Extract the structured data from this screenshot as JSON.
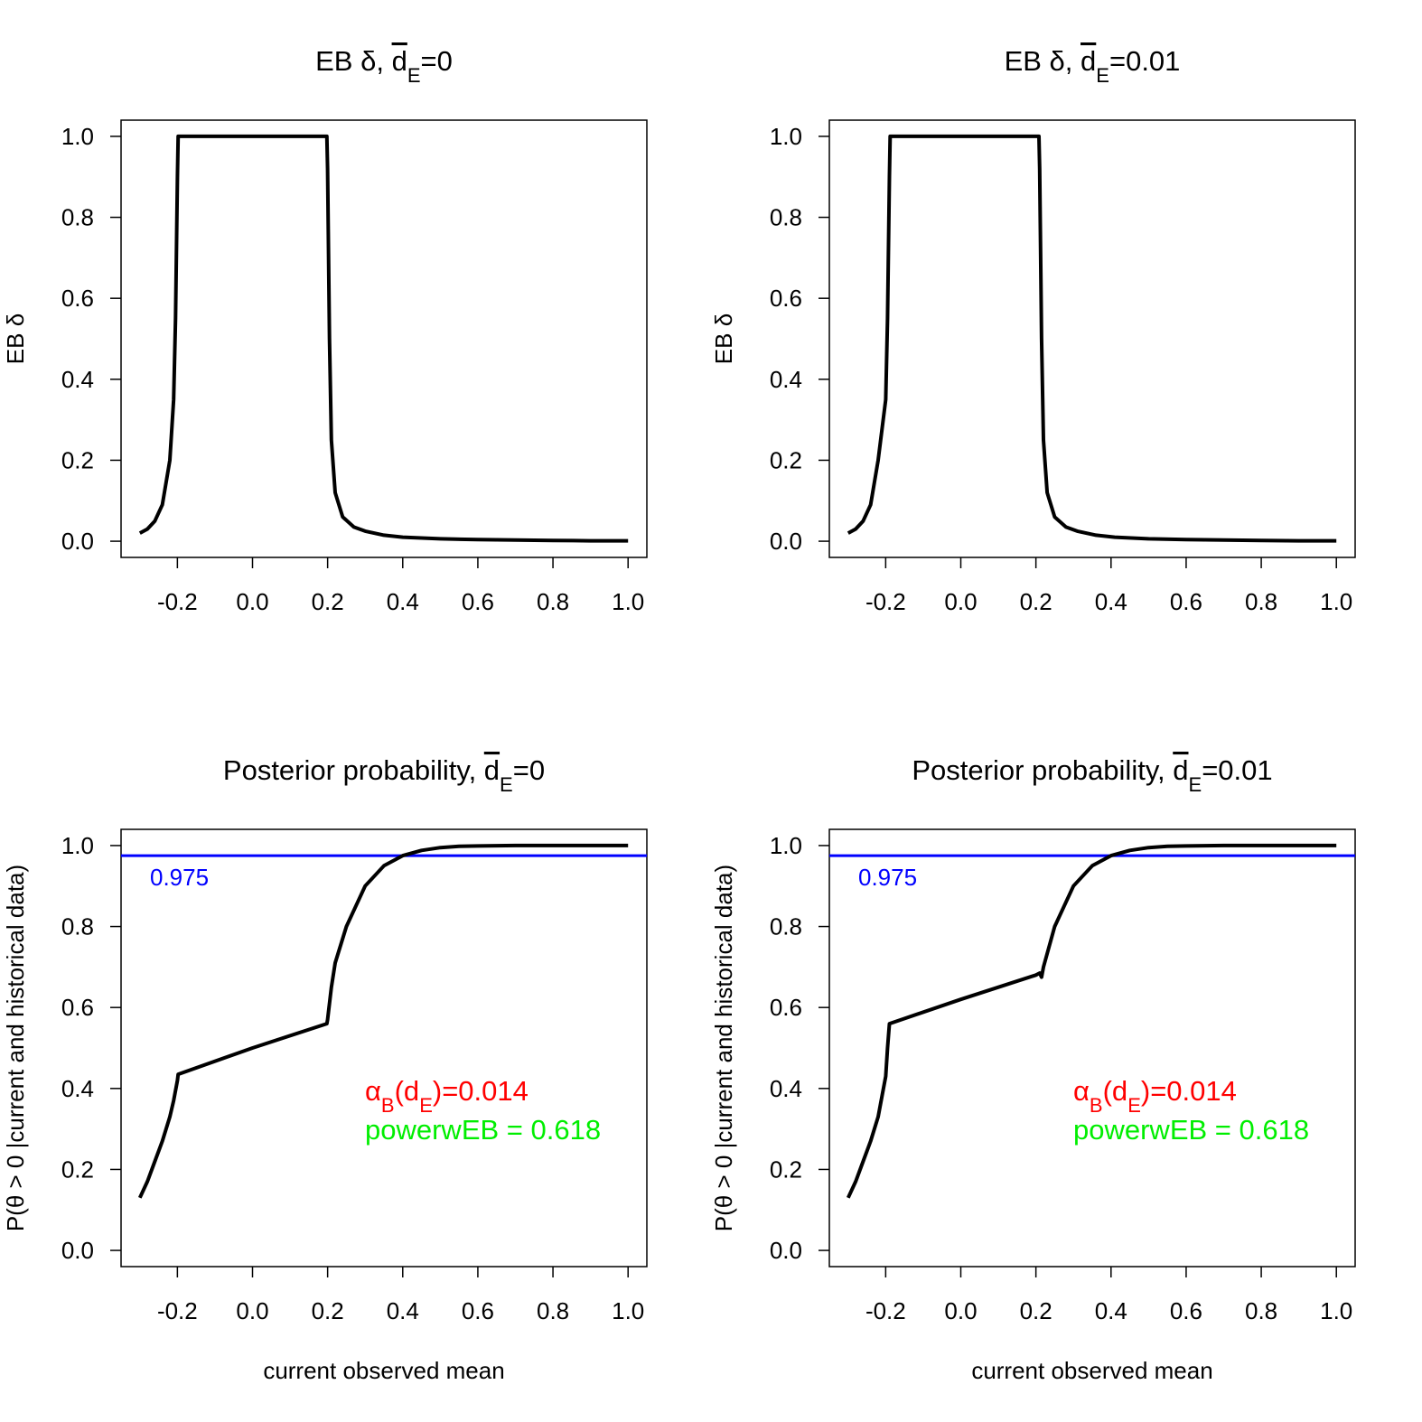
{
  "chart_data": [
    {
      "type": "line",
      "title": {
        "main": "EB δ, ",
        "d": "d",
        "sub": "E",
        "suffix": "=0"
      },
      "xlabel": "",
      "ylabel": "EB δ",
      "xlim": [
        -0.35,
        1.05
      ],
      "ylim": [
        -0.04,
        1.04
      ],
      "xticks": [
        "-0.2",
        "0.0",
        "0.2",
        "0.4",
        "0.6",
        "0.8",
        "1.0"
      ],
      "yticks": [
        "0.0",
        "0.2",
        "0.4",
        "0.6",
        "0.8",
        "1.0"
      ],
      "series": [
        {
          "name": "EB delta",
          "x": [
            -0.3,
            -0.28,
            -0.26,
            -0.24,
            -0.22,
            -0.21,
            -0.205,
            -0.2,
            -0.198,
            0.198,
            0.2,
            0.205,
            0.21,
            0.22,
            0.24,
            0.27,
            0.3,
            0.35,
            0.4,
            0.5,
            0.6,
            0.7,
            0.8,
            0.9,
            1.0
          ],
          "y": [
            0.02,
            0.03,
            0.05,
            0.09,
            0.2,
            0.35,
            0.55,
            0.9,
            1.0,
            1.0,
            0.92,
            0.5,
            0.25,
            0.12,
            0.06,
            0.035,
            0.025,
            0.015,
            0.01,
            0.006,
            0.004,
            0.003,
            0.002,
            0.001,
            0.001
          ]
        }
      ]
    },
    {
      "type": "line",
      "title": {
        "main": "EB δ, ",
        "d": "d",
        "sub": "E",
        "suffix": "=0.01"
      },
      "xlabel": "",
      "ylabel": "EB δ",
      "xlim": [
        -0.35,
        1.05
      ],
      "ylim": [
        -0.04,
        1.04
      ],
      "xticks": [
        "-0.2",
        "0.0",
        "0.2",
        "0.4",
        "0.6",
        "0.8",
        "1.0"
      ],
      "yticks": [
        "0.0",
        "0.2",
        "0.4",
        "0.6",
        "0.8",
        "1.0"
      ],
      "series": [
        {
          "name": "EB delta",
          "x": [
            -0.3,
            -0.28,
            -0.26,
            -0.24,
            -0.22,
            -0.2,
            -0.195,
            -0.19,
            -0.188,
            0.208,
            0.21,
            0.215,
            0.22,
            0.23,
            0.25,
            0.28,
            0.31,
            0.36,
            0.41,
            0.5,
            0.6,
            0.7,
            0.8,
            0.9,
            1.0
          ],
          "y": [
            0.02,
            0.03,
            0.05,
            0.09,
            0.2,
            0.35,
            0.55,
            0.9,
            1.0,
            1.0,
            0.92,
            0.5,
            0.25,
            0.12,
            0.06,
            0.035,
            0.025,
            0.015,
            0.01,
            0.006,
            0.004,
            0.003,
            0.002,
            0.001,
            0.001
          ]
        }
      ]
    },
    {
      "type": "line",
      "title": {
        "main": "Posterior probability, ",
        "d": "d",
        "sub": "E",
        "suffix": "=0"
      },
      "xlabel": "current observed mean",
      "ylabel": "P(θ > 0 |current and historical data)",
      "xlim": [
        -0.35,
        1.05
      ],
      "ylim": [
        -0.04,
        1.04
      ],
      "xticks": [
        "-0.2",
        "0.0",
        "0.2",
        "0.4",
        "0.6",
        "0.8",
        "1.0"
      ],
      "yticks": [
        "0.0",
        "0.2",
        "0.4",
        "0.6",
        "0.8",
        "1.0"
      ],
      "reference_line": {
        "y": 0.975,
        "label": "0.975",
        "color": "#0000ff"
      },
      "annotations": [
        {
          "alpha": "α",
          "sub1": "B",
          "mid": "(d",
          "sub2": "E",
          "value": ")=0.014",
          "color": "#ff0000"
        },
        {
          "text": "powerwEB =  0.618",
          "color": "#00ee00"
        }
      ],
      "series": [
        {
          "name": "posterior probability",
          "x": [
            -0.3,
            -0.28,
            -0.26,
            -0.24,
            -0.22,
            -0.21,
            -0.2,
            -0.198,
            0.0,
            0.198,
            0.2,
            0.21,
            0.22,
            0.25,
            0.3,
            0.35,
            0.4,
            0.45,
            0.5,
            0.55,
            0.6,
            0.7,
            0.8,
            0.9,
            1.0
          ],
          "y": [
            0.13,
            0.17,
            0.22,
            0.27,
            0.33,
            0.37,
            0.42,
            0.435,
            0.5,
            0.56,
            0.57,
            0.65,
            0.71,
            0.8,
            0.9,
            0.95,
            0.975,
            0.988,
            0.995,
            0.998,
            0.999,
            1.0,
            1.0,
            1.0,
            1.0
          ]
        }
      ]
    },
    {
      "type": "line",
      "title": {
        "main": "Posterior probability, ",
        "d": "d",
        "sub": "E",
        "suffix": "=0.01"
      },
      "xlabel": "current observed mean",
      "ylabel": "P(θ > 0 |current and historical data)",
      "xlim": [
        -0.35,
        1.05
      ],
      "ylim": [
        -0.04,
        1.04
      ],
      "xticks": [
        "-0.2",
        "0.0",
        "0.2",
        "0.4",
        "0.6",
        "0.8",
        "1.0"
      ],
      "yticks": [
        "0.0",
        "0.2",
        "0.4",
        "0.6",
        "0.8",
        "1.0"
      ],
      "reference_line": {
        "y": 0.975,
        "label": "0.975",
        "color": "#0000ff"
      },
      "annotations": [
        {
          "alpha": "α",
          "sub1": "B",
          "mid": "(d",
          "sub2": "E",
          "value": ")=0.014",
          "color": "#ff0000"
        },
        {
          "text": "powerwEB =  0.618",
          "color": "#00ee00"
        }
      ],
      "series": [
        {
          "name": "posterior probability",
          "x": [
            -0.3,
            -0.28,
            -0.26,
            -0.24,
            -0.22,
            -0.21,
            -0.2,
            -0.195,
            -0.19,
            0.0,
            0.2,
            0.21,
            0.215,
            0.22,
            0.25,
            0.3,
            0.35,
            0.4,
            0.45,
            0.5,
            0.55,
            0.6,
            0.7,
            0.8,
            1.0
          ],
          "y": [
            0.13,
            0.17,
            0.22,
            0.27,
            0.33,
            0.38,
            0.43,
            0.5,
            0.56,
            0.62,
            0.68,
            0.685,
            0.675,
            0.7,
            0.8,
            0.9,
            0.95,
            0.975,
            0.988,
            0.995,
            0.998,
            0.999,
            1.0,
            1.0,
            1.0
          ]
        }
      ]
    }
  ]
}
